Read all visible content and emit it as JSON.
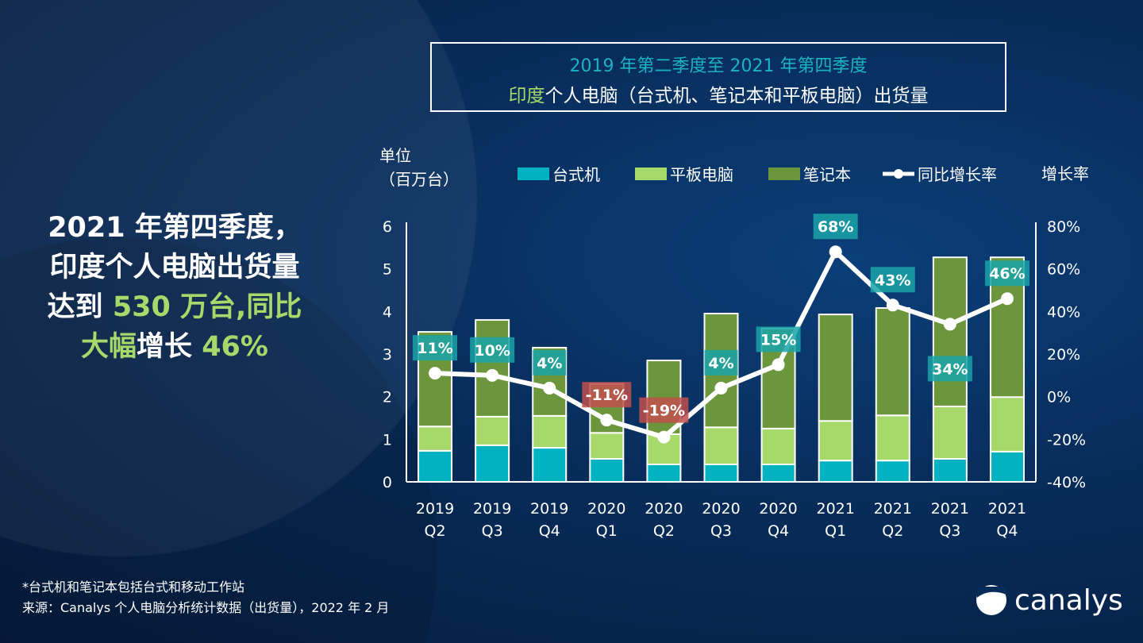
{
  "title": {
    "line1": "2019 年第二季度至 2021 年第四季度",
    "line2_highlight": "印度",
    "line2_rest": "个人电脑（台式机、笔记本和平板电脑）出货量"
  },
  "headline": {
    "l1": "2021 年第四季度，",
    "l2": "印度个人电脑出货量",
    "l3a": "达到 ",
    "l3b": "530 万台,同比",
    "l4a": "大幅",
    "l4b": "增长 ",
    "l4c": "46%"
  },
  "footnote": {
    "line1": "*台式机和笔记本包括台式和移动工作站",
    "line2": "来源：Canalys 个人电脑分析统计数据（出货量），2022 年 2 月"
  },
  "logo": {
    "text": "canalys"
  },
  "colors": {
    "desktop": "#00b2c2",
    "tablet": "#a6d86a",
    "notebook": "#6b963b",
    "line": "#ffffff",
    "pos_label": "#1aa3a8",
    "neg_label": "#c0504d"
  },
  "chart_data": {
    "type": "bar",
    "stacked": true,
    "categories": [
      [
        "2019",
        "Q2"
      ],
      [
        "2019",
        "Q3"
      ],
      [
        "2019",
        "Q4"
      ],
      [
        "2020",
        "Q1"
      ],
      [
        "2020",
        "Q2"
      ],
      [
        "2020",
        "Q3"
      ],
      [
        "2020",
        "Q4"
      ],
      [
        "2021",
        "Q1"
      ],
      [
        "2021",
        "Q2"
      ],
      [
        "2021",
        "Q3"
      ],
      [
        "2021",
        "Q4"
      ]
    ],
    "ylabel_left": "单位\n（百万台）",
    "ylabel_left_l1": "单位",
    "ylabel_left_l2": "（百万台）",
    "ylabel_right": "增长率",
    "ylim": [
      0,
      6
    ],
    "yticks": [
      "0",
      "1",
      "2",
      "3",
      "4",
      "5",
      "6"
    ],
    "y2lim": [
      -40,
      80
    ],
    "y2ticks": [
      "-40%",
      "-20%",
      "0%",
      "20%",
      "40%",
      "60%",
      "80%"
    ],
    "series": [
      {
        "name": "台式机",
        "values": [
          0.73,
          0.86,
          0.8,
          0.54,
          0.41,
          0.41,
          0.41,
          0.5,
          0.5,
          0.54,
          0.71
        ]
      },
      {
        "name": "平板电脑",
        "values": [
          0.57,
          0.67,
          0.75,
          0.61,
          0.71,
          0.87,
          0.84,
          0.93,
          1.06,
          1.23,
          1.28
        ]
      },
      {
        "name": "笔记本",
        "values": [
          2.22,
          2.27,
          1.6,
          1.15,
          1.73,
          2.67,
          2.35,
          2.5,
          2.52,
          3.5,
          3.28
        ]
      },
      {
        "name": "同比增长率",
        "type": "line",
        "axis": "right",
        "values": [
          11,
          10,
          4,
          -11,
          -19,
          4,
          15,
          68,
          43,
          34,
          46
        ],
        "labels": [
          "11%",
          "10%",
          "4%",
          "-11%",
          "-19%",
          "4%",
          "15%",
          "68%",
          "43%",
          "34%",
          "46%"
        ]
      }
    ],
    "legend": "top"
  }
}
